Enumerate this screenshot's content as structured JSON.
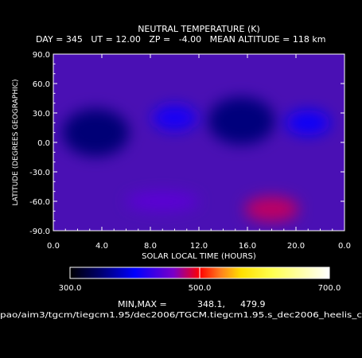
{
  "chart_data": {
    "type": "heatmap",
    "title": "NEUTRAL TEMPERATURE (K)",
    "subtitle": "DAY = 345   UT = 12.00   ZP =   -4.00   MEAN ALTITUDE = 118 km",
    "xlabel": "SOLAR LOCAL TIME (HOURS)",
    "ylabel": "LATITUDE (DEGREES GEOGRAPHIC)",
    "xlim": [
      0,
      24
    ],
    "ylim": [
      -90,
      90
    ],
    "x_tick_labels": [
      "0.0",
      "4.0",
      "8.0",
      "12.0",
      "16.0",
      "20.0",
      "0.0"
    ],
    "y_tick_labels": [
      "90.0",
      "60.0",
      "30.0",
      "0.0",
      "-30.0",
      "-60.0",
      "-90.0"
    ],
    "colorbar": {
      "min": 300.0,
      "max": 700.0,
      "tick_labels": [
        "300.0",
        "500.0",
        "700.0"
      ]
    },
    "min_max_label": "MIN,MAX =",
    "min_value": "348.1,",
    "max_value": "479.9",
    "source_path": "pao/aim3/tgcm/tiegcm1.95/dec2006/TGCM.tiegcm1.95.s_dec2006_heelis_c",
    "features": [
      {
        "kind": "cold",
        "x": 3.5,
        "y": 10,
        "value": 350
      },
      {
        "kind": "cold",
        "x": 15.5,
        "y": 22,
        "value": 352
      },
      {
        "kind": "warm",
        "x": 18,
        "y": -68,
        "value": 480
      },
      {
        "kind": "warm",
        "x": 9,
        "y": -60,
        "value": 445
      },
      {
        "kind": "warm",
        "x": 10,
        "y": 25,
        "value": 410
      },
      {
        "kind": "warm",
        "x": 21,
        "y": 20,
        "value": 408
      }
    ]
  }
}
